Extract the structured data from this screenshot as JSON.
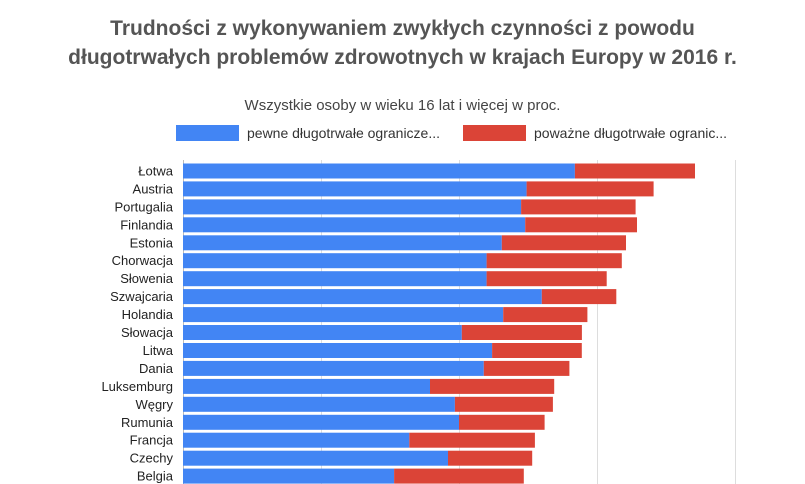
{
  "title_lines": [
    "Trudności z wykonywaniem zwykłych czynności z powodu",
    "długotrwałych problemów zdrowotnych w krajach Europy w 2016 r."
  ],
  "colors": {
    "some": "#4285f4",
    "severe": "#db4437",
    "grid": "#dddddd"
  },
  "chart_data": {
    "type": "bar",
    "orientation": "horizontal",
    "stacked": true,
    "title": "Trudności z wykonywaniem zwykłych czynności z powodu długotrwałych problemów zdrowotnych w krajach Europy w 2016 r.",
    "subtitle": "Wszystkie osoby w wieku 16 lat i więcej w proc.",
    "xlabel": "",
    "ylabel": "",
    "xlim": [
      0,
      40
    ],
    "legend_position": "top",
    "categories": [
      "Łotwa",
      "Austria",
      "Portugalia",
      "Finlandia",
      "Estonia",
      "Chorwacja",
      "Słowenia",
      "Szwajcaria",
      "Holandia",
      "Słowacja",
      "Litwa",
      "Dania",
      "Luksemburg",
      "Węgry",
      "Rumunia",
      "Francja",
      "Czechy",
      "Belgia"
    ],
    "series": [
      {
        "name": "pewne długotrwałe ograniczenia",
        "legend_label": "pewne długotrwałe ogranicze...",
        "values": [
          28.4,
          24.9,
          24.5,
          24.8,
          23.1,
          22.0,
          22.0,
          26.0,
          23.2,
          20.2,
          22.4,
          21.8,
          17.9,
          19.7,
          20.0,
          16.4,
          19.2,
          15.3
        ]
      },
      {
        "name": "poważne długotrwałe ograniczenia",
        "legend_label": "poważne długotrwałe ogranic...",
        "values": [
          8.7,
          9.2,
          8.3,
          8.1,
          9.0,
          9.8,
          8.7,
          5.4,
          6.1,
          8.7,
          6.5,
          6.2,
          9.0,
          7.1,
          6.2,
          9.1,
          6.1,
          9.4
        ]
      }
    ]
  }
}
